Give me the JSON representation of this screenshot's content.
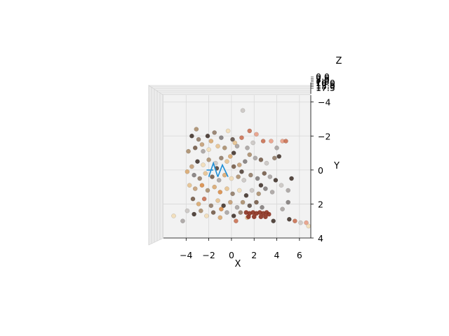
{
  "chart_data": {
    "type": "scatter",
    "projection": "3d",
    "view": "top-down (looking along Z)",
    "title": "",
    "xlabel": "X",
    "ylabel": "Y",
    "zlabel": "Z",
    "xlim": [
      -6,
      7
    ],
    "ylim": [
      4,
      -4.4
    ],
    "x_ticks": [
      {
        "value": -4,
        "label": "−4"
      },
      {
        "value": -2,
        "label": "−2"
      },
      {
        "value": 0,
        "label": "0"
      },
      {
        "value": 2,
        "label": "2"
      },
      {
        "value": 4,
        "label": "4"
      },
      {
        "value": 6,
        "label": "6"
      }
    ],
    "y_ticks": [
      {
        "value": -4,
        "label": "−4"
      },
      {
        "value": -2,
        "label": "−2"
      },
      {
        "value": 0,
        "label": "0"
      },
      {
        "value": 2,
        "label": "2"
      },
      {
        "value": 4,
        "label": "4"
      }
    ],
    "z_tick_labels": [
      "0.0",
      "2.5",
      "5.0",
      "7.5",
      "10.0",
      "12.5",
      "15.0",
      "17.5"
    ],
    "grid": true,
    "legend": "none",
    "point_colors": [
      "#3a2a22",
      "#6e5440",
      "#8d7560",
      "#a88a66",
      "#c29a70",
      "#d9a66a",
      "#e6c08a",
      "#f2dcb4",
      "#7d7775",
      "#a6a09d",
      "#c9c4c1",
      "#5a4a40",
      "#c86a4a",
      "#e89a80",
      "#d98840",
      "#4a3a30"
    ],
    "highlight_color": "#8b3220",
    "line_color": "#1f8fd6",
    "points": [
      {
        "x": 1.0,
        "y": -3.5,
        "c": 10
      },
      {
        "x": -3.1,
        "y": -2.4,
        "c": 3
      },
      {
        "x": -3.5,
        "y": -2.0,
        "c": 0
      },
      {
        "x": -2.9,
        "y": -1.8,
        "c": 2
      },
      {
        "x": -2.6,
        "y": -1.5,
        "c": 4
      },
      {
        "x": -3.2,
        "y": -1.3,
        "c": 1
      },
      {
        "x": -3.8,
        "y": -1.1,
        "c": 3
      },
      {
        "x": -2.5,
        "y": -1.1,
        "c": 9
      },
      {
        "x": -2.1,
        "y": -2.0,
        "c": 0
      },
      {
        "x": -1.8,
        "y": -1.7,
        "c": 5
      },
      {
        "x": -1.5,
        "y": -2.2,
        "c": 2
      },
      {
        "x": -1.2,
        "y": -1.4,
        "c": 6
      },
      {
        "x": -0.9,
        "y": -1.9,
        "c": 8
      },
      {
        "x": -0.6,
        "y": -1.3,
        "c": 3
      },
      {
        "x": -0.3,
        "y": -2.3,
        "c": 7
      },
      {
        "x": 0.1,
        "y": -1.8,
        "c": 11
      },
      {
        "x": 0.2,
        "y": -1.0,
        "c": 0
      },
      {
        "x": -0.1,
        "y": -0.8,
        "c": 5
      },
      {
        "x": 0.5,
        "y": -1.4,
        "c": 9
      },
      {
        "x": 0.9,
        "y": -1.9,
        "c": 12
      },
      {
        "x": 1.6,
        "y": -2.3,
        "c": 12
      },
      {
        "x": 2.2,
        "y": -2.1,
        "c": 13
      },
      {
        "x": 2.8,
        "y": -1.7,
        "c": 12
      },
      {
        "x": 3.5,
        "y": -1.7,
        "c": 13
      },
      {
        "x": 4.0,
        "y": -1.3,
        "c": 9
      },
      {
        "x": 4.5,
        "y": -1.7,
        "c": 13
      },
      {
        "x": 4.8,
        "y": -1.7,
        "c": 12
      },
      {
        "x": 4.2,
        "y": -0.8,
        "c": 0
      },
      {
        "x": 3.8,
        "y": -0.7,
        "c": 2
      },
      {
        "x": 3.1,
        "y": -0.4,
        "c": 10
      },
      {
        "x": 2.6,
        "y": -0.6,
        "c": 1
      },
      {
        "x": 2.1,
        "y": -0.7,
        "c": 9
      },
      {
        "x": 1.6,
        "y": -0.9,
        "c": 3
      },
      {
        "x": 1.2,
        "y": -0.5,
        "c": 8
      },
      {
        "x": 0.7,
        "y": -0.3,
        "c": 4
      },
      {
        "x": 0.2,
        "y": -0.2,
        "c": 1
      },
      {
        "x": -0.4,
        "y": -0.5,
        "c": 6
      },
      {
        "x": -0.9,
        "y": -0.7,
        "c": 2
      },
      {
        "x": -1.4,
        "y": -0.4,
        "c": 10
      },
      {
        "x": -2.0,
        "y": -0.6,
        "c": 3
      },
      {
        "x": -2.5,
        "y": -0.3,
        "c": 7
      },
      {
        "x": -3.0,
        "y": -0.5,
        "c": 0
      },
      {
        "x": -3.5,
        "y": -0.2,
        "c": 4
      },
      {
        "x": -3.9,
        "y": 0.1,
        "c": 5
      },
      {
        "x": -3.3,
        "y": 0.3,
        "c": 8
      },
      {
        "x": -2.8,
        "y": 0.5,
        "c": 2
      },
      {
        "x": -2.3,
        "y": 0.2,
        "c": 6
      },
      {
        "x": -1.7,
        "y": 0.4,
        "c": 1
      },
      {
        "x": -1.1,
        "y": 0.6,
        "c": 9
      },
      {
        "x": -0.6,
        "y": 0.3,
        "c": 5
      },
      {
        "x": 0.0,
        "y": 0.5,
        "c": 7
      },
      {
        "x": 0.6,
        "y": 0.4,
        "c": 3
      },
      {
        "x": 1.1,
        "y": 0.6,
        "c": 10
      },
      {
        "x": 1.7,
        "y": 0.3,
        "c": 2
      },
      {
        "x": 2.3,
        "y": 0.5,
        "c": 8
      },
      {
        "x": 2.9,
        "y": 0.2,
        "c": 1
      },
      {
        "x": 3.4,
        "y": 0.4,
        "c": 9
      },
      {
        "x": 3.9,
        "y": 0.6,
        "c": 0
      },
      {
        "x": 4.4,
        "y": 0.9,
        "c": 10
      },
      {
        "x": 5.0,
        "y": 1.2,
        "c": 9
      },
      {
        "x": 5.3,
        "y": 0.5,
        "c": 0
      },
      {
        "x": 5.0,
        "y": 1.9,
        "c": 8
      },
      {
        "x": -3.7,
        "y": 0.9,
        "c": 6
      },
      {
        "x": -3.2,
        "y": 1.1,
        "c": 4
      },
      {
        "x": -2.6,
        "y": 0.9,
        "c": 14
      },
      {
        "x": -2.1,
        "y": 1.2,
        "c": 3
      },
      {
        "x": -1.5,
        "y": 1.0,
        "c": 5
      },
      {
        "x": -1.0,
        "y": 1.3,
        "c": 14
      },
      {
        "x": -0.4,
        "y": 1.1,
        "c": 6
      },
      {
        "x": 0.1,
        "y": 1.4,
        "c": 2
      },
      {
        "x": 0.7,
        "y": 1.2,
        "c": 7
      },
      {
        "x": 1.3,
        "y": 1.5,
        "c": 0
      },
      {
        "x": 1.8,
        "y": 1.2,
        "c": 10
      },
      {
        "x": 2.4,
        "y": 1.4,
        "c": 3
      },
      {
        "x": 3.0,
        "y": 1.1,
        "c": 8
      },
      {
        "x": 3.6,
        "y": 1.3,
        "c": 9
      },
      {
        "x": -3.4,
        "y": 1.7,
        "c": 1
      },
      {
        "x": -2.9,
        "y": 2.0,
        "c": 5
      },
      {
        "x": -2.4,
        "y": 1.7,
        "c": 12
      },
      {
        "x": -1.8,
        "y": 2.1,
        "c": 2
      },
      {
        "x": -1.2,
        "y": 1.8,
        "c": 6
      },
      {
        "x": -0.7,
        "y": 2.1,
        "c": 0
      },
      {
        "x": -0.1,
        "y": 1.9,
        "c": 4
      },
      {
        "x": 0.5,
        "y": 2.2,
        "c": 9
      },
      {
        "x": 1.0,
        "y": 1.9,
        "c": 3
      },
      {
        "x": 1.6,
        "y": 2.1,
        "c": 11
      },
      {
        "x": 2.2,
        "y": 1.9,
        "c": 1
      },
      {
        "x": 2.7,
        "y": 2.2,
        "c": 8
      },
      {
        "x": -3.9,
        "y": 2.4,
        "c": 10
      },
      {
        "x": -3.3,
        "y": 2.6,
        "c": 0
      },
      {
        "x": -2.7,
        "y": 2.4,
        "c": 3
      },
      {
        "x": -2.2,
        "y": 2.7,
        "c": 7
      },
      {
        "x": -1.6,
        "y": 2.5,
        "c": 1
      },
      {
        "x": -1.0,
        "y": 2.8,
        "c": 5
      },
      {
        "x": -0.4,
        "y": 2.5,
        "c": 9
      },
      {
        "x": 0.2,
        "y": 2.7,
        "c": 0
      },
      {
        "x": 0.8,
        "y": 2.5,
        "c": 2
      },
      {
        "x": 1.4,
        "y": 2.8,
        "c": 6
      },
      {
        "x": 4.5,
        "y": 2.3,
        "c": 9
      },
      {
        "x": 5.1,
        "y": 2.9,
        "c": 0
      },
      {
        "x": 5.6,
        "y": 3.0,
        "c": 12
      },
      {
        "x": 6.1,
        "y": 3.1,
        "c": 10
      },
      {
        "x": 6.6,
        "y": 3.1,
        "c": 13
      },
      {
        "x": 6.8,
        "y": 3.3,
        "c": 7
      },
      {
        "x": 3.7,
        "y": 3.0,
        "c": 0
      },
      {
        "x": -5.1,
        "y": 2.7,
        "c": 7
      },
      {
        "x": -4.3,
        "y": 3.0,
        "c": 9
      },
      {
        "x": -1.3,
        "y": -0.1,
        "c": 15
      },
      {
        "x": 0.3,
        "y": -1.6,
        "c": 6
      },
      {
        "x": -2.0,
        "y": -1.2,
        "c": 7
      },
      {
        "x": 1.4,
        "y": -1.3,
        "c": 9
      },
      {
        "x": 1.9,
        "y": -1.6,
        "c": 10
      },
      {
        "x": 2.6,
        "y": 0.9,
        "c": 0
      },
      {
        "x": 0.9,
        "y": 0.1,
        "c": 15
      },
      {
        "x": -0.9,
        "y": 2.3,
        "c": 14
      },
      {
        "x": 0.4,
        "y": 3.0,
        "c": 12
      }
    ],
    "highlight_points": [
      {
        "x": 1.3,
        "y": 2.5
      },
      {
        "x": 1.6,
        "y": 2.55
      },
      {
        "x": 1.9,
        "y": 2.5
      },
      {
        "x": 2.2,
        "y": 2.55
      },
      {
        "x": 2.5,
        "y": 2.5
      },
      {
        "x": 2.8,
        "y": 2.55
      },
      {
        "x": 3.1,
        "y": 2.5
      },
      {
        "x": 3.3,
        "y": 2.6
      },
      {
        "x": 1.5,
        "y": 2.75
      },
      {
        "x": 2.0,
        "y": 2.75
      },
      {
        "x": 2.6,
        "y": 2.75
      },
      {
        "x": 3.0,
        "y": 2.75
      }
    ],
    "line_segments": [
      [
        {
          "x": -2.0,
          "y": 0.4
        },
        {
          "x": -1.6,
          "y": -0.4
        },
        {
          "x": -1.2,
          "y": 0.4
        }
      ],
      [
        {
          "x": -1.2,
          "y": 0.4
        },
        {
          "x": -0.8,
          "y": -0.3
        },
        {
          "x": -0.3,
          "y": 0.4
        }
      ],
      [
        {
          "x": -2.2,
          "y": 0.0
        },
        {
          "x": -1.6,
          "y": 0.0
        }
      ]
    ]
  }
}
